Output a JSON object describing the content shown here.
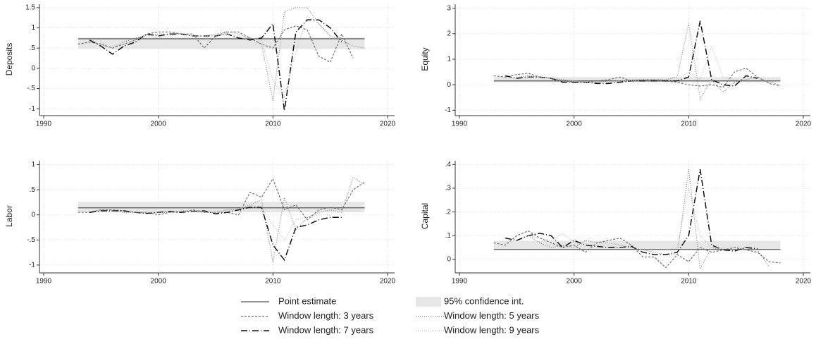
{
  "chart_data": [
    {
      "type": "line",
      "ylabel": "Deposits",
      "x": [
        1993,
        1994,
        1995,
        1996,
        1997,
        1998,
        1999,
        2000,
        2001,
        2002,
        2003,
        2004,
        2005,
        2006,
        2007,
        2008,
        2009,
        2010,
        2011,
        2012,
        2013,
        2014,
        2015,
        2016,
        2017,
        2018
      ],
      "xlim": [
        1990,
        2020
      ],
      "xticks": [
        1990,
        2000,
        2010,
        2020
      ],
      "ylim": [
        -1.1,
        1.55
      ],
      "yticks": [
        -1,
        {
          "value": -0.5,
          "label": "-.5"
        },
        0,
        {
          "value": 0.5,
          "label": ".5"
        },
        1,
        1.5
      ],
      "grid": true,
      "estimate": 0.73,
      "ci": [
        0.48,
        0.76
      ],
      "series": [
        {
          "values": [
            0.6,
            0.65,
            0.6,
            0.5,
            0.6,
            0.7,
            0.85,
            0.9,
            0.9,
            0.85,
            0.85,
            0.5,
            0.8,
            0.9,
            0.9,
            0.75,
            0.6,
            0.5,
            0.95,
            1.05,
            0.95,
            0.3,
            0.15,
            0.85,
            0.25,
            null
          ]
        },
        {
          "values": [
            null,
            null,
            0.6,
            0.5,
            0.65,
            0.75,
            0.8,
            0.85,
            0.85,
            0.85,
            0.8,
            0.8,
            0.85,
            0.9,
            0.85,
            0.75,
            0.6,
            -0.8,
            1.4,
            1.5,
            1.5,
            1.1,
            0.8,
            0.7,
            0.55,
            0.5
          ]
        },
        {
          "values": [
            null,
            0.7,
            0.55,
            0.35,
            0.55,
            0.65,
            0.85,
            0.8,
            0.85,
            0.85,
            0.8,
            0.8,
            0.8,
            0.85,
            0.75,
            0.7,
            0.75,
            1.1,
            -1.05,
            0.9,
            1.2,
            1.2,
            1.0,
            0.65,
            null,
            null
          ]
        },
        {
          "values": [
            null,
            null,
            null,
            0.55,
            0.6,
            0.7,
            0.8,
            0.75,
            0.8,
            0.85,
            0.8,
            0.8,
            0.8,
            0.85,
            0.8,
            0.75,
            0.7,
            -0.3,
            -0.7,
            0.4,
            1.3,
            1.1,
            0.8,
            null,
            null,
            null
          ]
        }
      ]
    },
    {
      "type": "line",
      "ylabel": "Equity",
      "x": [
        1993,
        1994,
        1995,
        1996,
        1997,
        1998,
        1999,
        2000,
        2001,
        2002,
        2003,
        2004,
        2005,
        2006,
        2007,
        2008,
        2009,
        2010,
        2011,
        2012,
        2013,
        2014,
        2015,
        2016,
        2017,
        2018
      ],
      "xlim": [
        1990,
        2020
      ],
      "xticks": [
        1990,
        2000,
        2010,
        2020
      ],
      "ylim": [
        -1.1,
        3.1
      ],
      "yticks": [
        -1,
        0,
        1,
        2,
        3
      ],
      "grid": true,
      "estimate": 0.15,
      "ci": [
        0.1,
        0.3
      ],
      "series": [
        {
          "values": [
            0.35,
            0.3,
            0.4,
            0.45,
            0.3,
            0.25,
            0.15,
            0.1,
            0.1,
            0.15,
            0.2,
            0.3,
            0.15,
            0.2,
            0.2,
            0.15,
            0.1,
            0.0,
            -0.05,
            0.0,
            -0.1,
            0.5,
            0.65,
            0.3,
            0.05,
            -0.05
          ]
        },
        {
          "values": [
            null,
            null,
            0.3,
            0.35,
            0.3,
            0.25,
            0.2,
            0.15,
            0.1,
            0.1,
            0.15,
            0.15,
            0.2,
            0.2,
            0.2,
            0.2,
            0.3,
            2.4,
            -0.55,
            0.2,
            -0.3,
            0.1,
            0.2,
            0.3,
            0.1,
            0.0
          ]
        },
        {
          "values": [
            null,
            0.35,
            0.25,
            0.3,
            0.3,
            0.25,
            0.1,
            0.1,
            0.1,
            0.05,
            0.05,
            0.1,
            0.15,
            0.15,
            0.15,
            0.15,
            0.15,
            0.3,
            2.5,
            0.2,
            0.0,
            -0.05,
            0.35,
            0.25,
            null,
            null
          ]
        },
        {
          "values": [
            null,
            null,
            null,
            0.3,
            0.3,
            0.25,
            0.2,
            0.15,
            0.1,
            0.1,
            0.1,
            0.15,
            0.15,
            0.2,
            0.2,
            0.2,
            0.2,
            0.5,
            0.2,
            1.5,
            0.3,
            0.2,
            0.2,
            null,
            null,
            null
          ]
        }
      ]
    },
    {
      "type": "line",
      "ylabel": "Labor",
      "x": [
        1993,
        1994,
        1995,
        1996,
        1997,
        1998,
        1999,
        2000,
        2001,
        2002,
        2003,
        2004,
        2005,
        2006,
        2007,
        2008,
        2009,
        2010,
        2011,
        2012,
        2013,
        2014,
        2015,
        2016,
        2017,
        2018
      ],
      "xlim": [
        1990,
        2020
      ],
      "xticks": [
        1990,
        2000,
        2010,
        2020
      ],
      "ylim": [
        -1.1,
        1.05
      ],
      "yticks": [
        -1,
        {
          "value": -0.5,
          "label": "-.5"
        },
        0,
        {
          "value": 0.5,
          "label": ".5"
        },
        1
      ],
      "grid": true,
      "estimate": 0.14,
      "ci": [
        0.05,
        0.26
      ],
      "series": [
        {
          "values": [
            0.05,
            0.05,
            0.1,
            0.1,
            0.08,
            0.05,
            0.05,
            0.0,
            0.05,
            0.05,
            0.1,
            0.05,
            0.05,
            0.05,
            0.0,
            0.45,
            0.35,
            0.72,
            0.1,
            0.2,
            -0.1,
            0.1,
            0.15,
            0.1,
            0.5,
            0.65
          ]
        },
        {
          "values": [
            null,
            null,
            0.1,
            0.08,
            0.05,
            0.05,
            0.03,
            0.05,
            0.05,
            0.08,
            0.08,
            0.05,
            0.05,
            0.1,
            0.1,
            0.2,
            0.3,
            -0.95,
            0.35,
            -0.3,
            -0.05,
            0.05,
            0.1,
            0.05,
            0.75,
            0.6
          ]
        },
        {
          "values": [
            null,
            0.05,
            0.08,
            0.08,
            0.08,
            0.05,
            0.03,
            0.05,
            0.07,
            0.05,
            0.07,
            0.08,
            0.02,
            0.05,
            0.1,
            0.15,
            0.15,
            -0.6,
            -0.9,
            -0.25,
            -0.2,
            -0.1,
            -0.05,
            -0.05,
            null,
            null
          ]
        },
        {
          "values": [
            null,
            null,
            null,
            0.08,
            0.05,
            0.05,
            0.05,
            0.05,
            0.05,
            0.07,
            0.07,
            0.05,
            0.05,
            0.1,
            0.12,
            0.2,
            0.15,
            -0.2,
            -0.5,
            -0.1,
            -0.05,
            0.0,
            0.0,
            null,
            null,
            null
          ]
        }
      ]
    },
    {
      "type": "line",
      "ylabel": "Capital",
      "x": [
        1993,
        1994,
        1995,
        1996,
        1997,
        1998,
        1999,
        2000,
        2001,
        2002,
        2003,
        2004,
        2005,
        2006,
        2007,
        2008,
        2009,
        2010,
        2011,
        2012,
        2013,
        2014,
        2015,
        2016,
        2017,
        2018
      ],
      "xlim": [
        1990,
        2020
      ],
      "xticks": [
        1990,
        2000,
        2010,
        2020
      ],
      "ylim": [
        -0.045,
        0.41
      ],
      "yticks": [
        0,
        {
          "value": 0.1,
          "label": ".1"
        },
        {
          "value": 0.2,
          "label": ".2"
        },
        {
          "value": 0.3,
          "label": ".3"
        },
        {
          "value": 0.4,
          "label": ".4"
        }
      ],
      "grid": true,
      "estimate": 0.042,
      "ci": [
        0.04,
        0.078
      ],
      "series": [
        {
          "values": [
            0.07,
            0.06,
            0.1,
            0.12,
            0.09,
            0.07,
            0.05,
            0.06,
            0.03,
            0.07,
            0.08,
            0.09,
            0.06,
            0.01,
            0.01,
            -0.035,
            0.02,
            -0.01,
            0.05,
            0.03,
            0.04,
            0.05,
            0.04,
            0.03,
            -0.01,
            -0.015
          ]
        },
        {
          "values": [
            null,
            null,
            0.08,
            0.1,
            0.07,
            0.05,
            0.06,
            0.05,
            0.08,
            0.07,
            0.07,
            0.06,
            0.05,
            0.04,
            0.03,
            0.02,
            0.02,
            0.38,
            -0.04,
            0.05,
            0.04,
            0.04,
            0.05,
            0.04,
            -0.03,
            null
          ]
        },
        {
          "values": [
            null,
            0.09,
            0.08,
            0.1,
            0.11,
            0.1,
            0.05,
            0.08,
            0.06,
            0.055,
            0.05,
            0.05,
            0.055,
            0.03,
            0.02,
            0.02,
            0.03,
            0.1,
            0.38,
            0.06,
            0.04,
            0.035,
            0.05,
            0.045,
            null,
            null
          ]
        },
        {
          "values": [
            null,
            null,
            null,
            0.1,
            0.09,
            0.08,
            0.11,
            0.07,
            0.06,
            0.06,
            0.06,
            0.05,
            0.05,
            0.04,
            0.04,
            0.04,
            0.05,
            0.3,
            0.1,
            0.05,
            0.05,
            0.04,
            0.04,
            null,
            null,
            null
          ]
        }
      ]
    }
  ],
  "legend": [
    {
      "name": "Point estimate",
      "color": "#555555",
      "style": "solid"
    },
    {
      "name": "95% confidence int.",
      "color": "#e6e6e6",
      "style": "band"
    },
    {
      "name": "Window length: 3 years",
      "color": "#707070",
      "style": "dash"
    },
    {
      "name": "Window length: 5 years",
      "color": "#808080",
      "style": "dot"
    },
    {
      "name": "Window length: 7 years",
      "color": "#111111",
      "style": "longdash"
    },
    {
      "name": "Window length: 9 years",
      "color": "#bdbdbd",
      "style": "dot"
    }
  ]
}
